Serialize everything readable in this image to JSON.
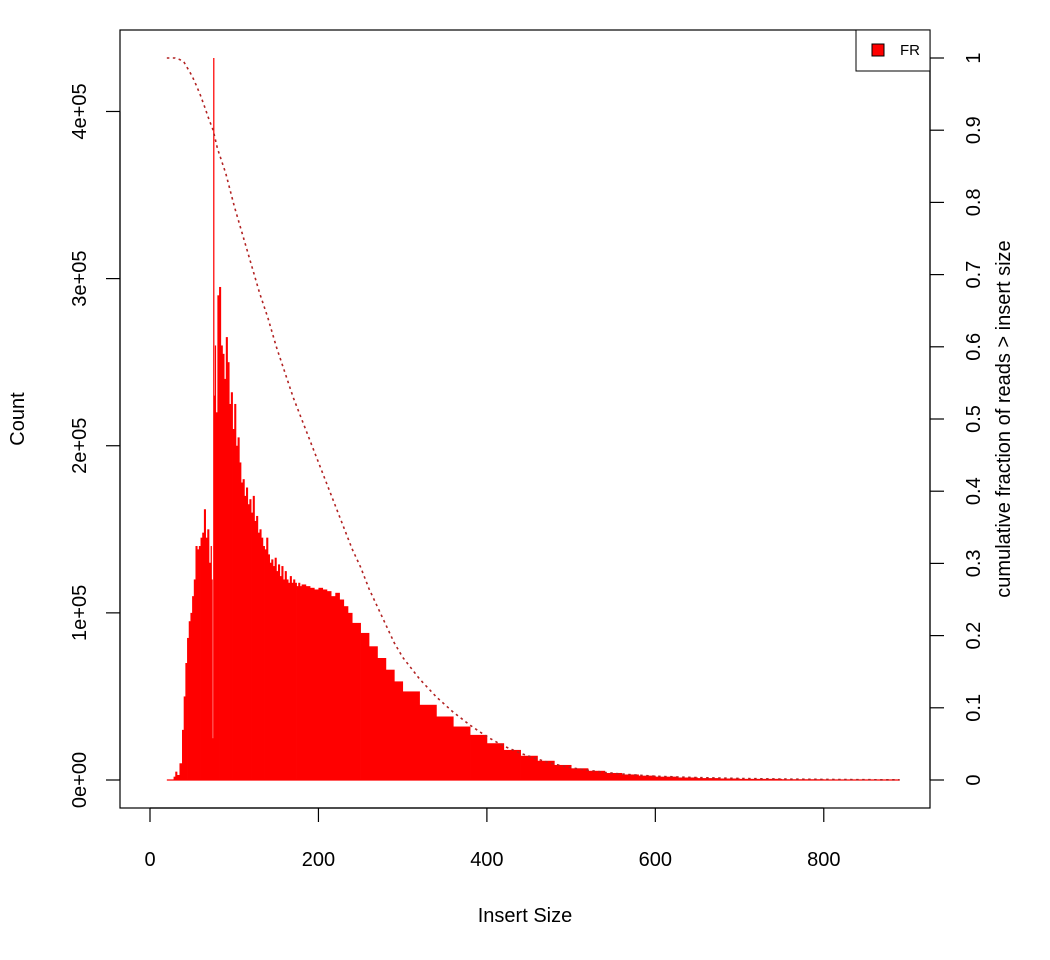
{
  "chart_data": {
    "type": "bar",
    "xlabel": "Insert Size",
    "ylabel": "Count",
    "y2label": "cumulative fraction of reads > insert size",
    "xlim": [
      0,
      900
    ],
    "ylim": [
      0,
      432000
    ],
    "y2lim": [
      0,
      1
    ],
    "x_ticks": [
      {
        "value": 0,
        "label": "0"
      },
      {
        "value": 200,
        "label": "200"
      },
      {
        "value": 400,
        "label": "400"
      },
      {
        "value": 600,
        "label": "600"
      },
      {
        "value": 800,
        "label": "800"
      }
    ],
    "y_ticks": [
      {
        "value": 0,
        "label": "0e+00"
      },
      {
        "value": 100000,
        "label": "1e+05"
      },
      {
        "value": 200000,
        "label": "2e+05"
      },
      {
        "value": 300000,
        "label": "3e+05"
      },
      {
        "value": 400000,
        "label": "4e+05"
      }
    ],
    "y2_ticks": [
      {
        "value": 0,
        "label": "0"
      },
      {
        "value": 0.1,
        "label": "0.1"
      },
      {
        "value": 0.2,
        "label": "0.2"
      },
      {
        "value": 0.3,
        "label": "0.3"
      },
      {
        "value": 0.4,
        "label": "0.4"
      },
      {
        "value": 0.5,
        "label": "0.5"
      },
      {
        "value": 0.6,
        "label": "0.6"
      },
      {
        "value": 0.7,
        "label": "0.7"
      },
      {
        "value": 0.8,
        "label": "0.8"
      },
      {
        "value": 0.9,
        "label": "0.9"
      },
      {
        "value": 1,
        "label": "1"
      }
    ],
    "legend": {
      "position": "top-right",
      "entries": [
        {
          "label": "FR",
          "color": "#ff0000"
        }
      ]
    },
    "grid": false,
    "series": [
      {
        "name": "FR",
        "type": "histogram",
        "color": "#ff0000",
        "x": [
          20,
          25,
          28,
          30,
          32,
          35,
          38,
          40,
          42,
          44,
          46,
          48,
          50,
          52,
          54,
          56,
          58,
          60,
          62,
          64,
          66,
          68,
          70,
          72,
          73,
          74,
          75,
          76,
          77,
          78,
          80,
          82,
          84,
          86,
          88,
          90,
          92,
          94,
          96,
          98,
          100,
          102,
          104,
          106,
          108,
          110,
          112,
          114,
          116,
          118,
          120,
          122,
          124,
          126,
          128,
          130,
          132,
          134,
          136,
          138,
          140,
          142,
          144,
          146,
          148,
          150,
          152,
          154,
          156,
          158,
          160,
          162,
          164,
          166,
          168,
          170,
          172,
          174,
          176,
          178,
          180,
          185,
          190,
          195,
          200,
          205,
          210,
          215,
          220,
          225,
          230,
          235,
          240,
          250,
          260,
          270,
          280,
          290,
          300,
          320,
          340,
          360,
          380,
          400,
          420,
          440,
          460,
          480,
          500,
          520,
          540,
          560,
          580,
          600,
          625,
          650,
          675,
          700,
          750,
          800,
          850,
          890
        ],
        "values": [
          0,
          0,
          2000,
          5000,
          3000,
          10000,
          30000,
          50000,
          70000,
          85000,
          95000,
          100000,
          110000,
          120000,
          140000,
          138000,
          140000,
          145000,
          148000,
          162000,
          145000,
          150000,
          130000,
          140000,
          120000,
          25000,
          432000,
          230000,
          260000,
          220000,
          290000,
          295000,
          260000,
          255000,
          240000,
          265000,
          250000,
          225000,
          232000,
          210000,
          225000,
          200000,
          205000,
          190000,
          178000,
          180000,
          170000,
          175000,
          165000,
          168000,
          160000,
          170000,
          155000,
          158000,
          148000,
          150000,
          145000,
          140000,
          138000,
          145000,
          135000,
          130000,
          132000,
          128000,
          133000,
          125000,
          129000,
          122000,
          128000,
          120000,
          125000,
          120000,
          118000,
          122000,
          118000,
          120000,
          118000,
          116000,
          118000,
          116000,
          117000,
          116000,
          115000,
          114000,
          115000,
          114000,
          113000,
          110000,
          112000,
          108000,
          104000,
          100000,
          94000,
          88000,
          80000,
          73000,
          66000,
          59000,
          53000,
          45000,
          38000,
          32000,
          27000,
          22000,
          18000,
          14500,
          11500,
          9000,
          7000,
          5500,
          4200,
          3300,
          2600,
          2000,
          1500,
          1150,
          900,
          680,
          420,
          260,
          160,
          90
        ]
      },
      {
        "name": "cumulative",
        "type": "line",
        "axis": "y2",
        "color": "#b22222",
        "style": "dotted",
        "x": [
          20,
          25,
          30,
          35,
          40,
          45,
          50,
          55,
          60,
          65,
          70,
          75,
          80,
          90,
          100,
          110,
          120,
          130,
          140,
          150,
          160,
          170,
          180,
          190,
          200,
          210,
          220,
          230,
          240,
          250,
          260,
          270,
          280,
          290,
          300,
          320,
          340,
          360,
          380,
          400,
          420,
          440,
          460,
          480,
          500,
          520,
          540,
          560,
          580,
          600,
          650,
          700,
          750,
          800,
          850,
          890
        ],
        "values": [
          1,
          1,
          1,
          0.998,
          0.995,
          0.985,
          0.975,
          0.962,
          0.948,
          0.932,
          0.915,
          0.9,
          0.875,
          0.84,
          0.795,
          0.755,
          0.715,
          0.675,
          0.64,
          0.6,
          0.565,
          0.53,
          0.5,
          0.47,
          0.44,
          0.41,
          0.38,
          0.35,
          0.32,
          0.295,
          0.265,
          0.24,
          0.215,
          0.19,
          0.17,
          0.14,
          0.115,
          0.094,
          0.076,
          0.06,
          0.047,
          0.037,
          0.029,
          0.022,
          0.017,
          0.0135,
          0.0105,
          0.0083,
          0.0066,
          0.0052,
          0.0033,
          0.0021,
          0.0013,
          0.0008,
          0.0004,
          0.0002
        ]
      }
    ]
  }
}
